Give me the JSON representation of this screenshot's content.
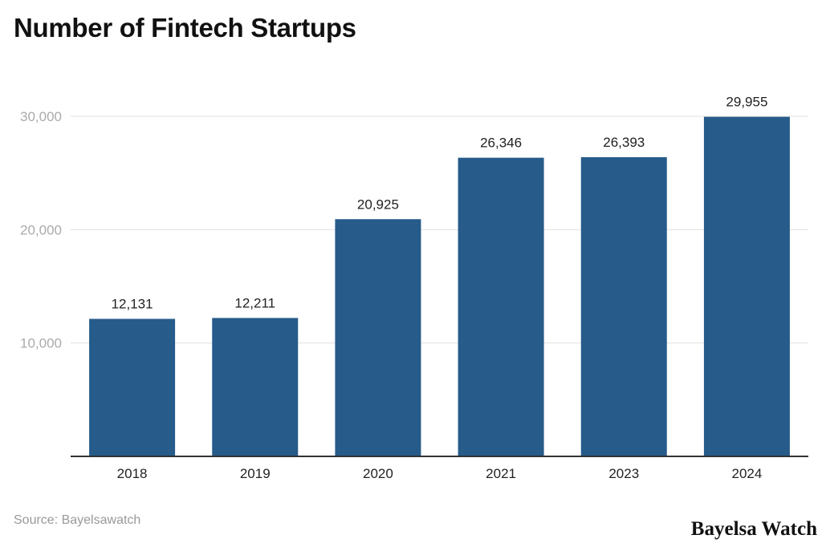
{
  "chart_data": {
    "type": "bar",
    "title": "Number of Fintech Startups",
    "categories": [
      "2018",
      "2019",
      "2020",
      "2021",
      "2023",
      "2024"
    ],
    "values": [
      12131,
      12211,
      20925,
      26346,
      26393,
      29955
    ],
    "data_labels": [
      "12,131",
      "12,211",
      "20,925",
      "26,346",
      "26,393",
      "29,955"
    ],
    "yticks": [
      10000,
      20000,
      30000
    ],
    "ytick_labels": [
      "10,000",
      "20,000",
      "30,000"
    ],
    "ylim": [
      0,
      30000
    ],
    "grid": true,
    "bar_color": "#265B8A",
    "xlabel": "",
    "ylabel": ""
  },
  "footer": {
    "source": "Source: Bayelsawatch",
    "brand": "Bayelsa Watch"
  }
}
